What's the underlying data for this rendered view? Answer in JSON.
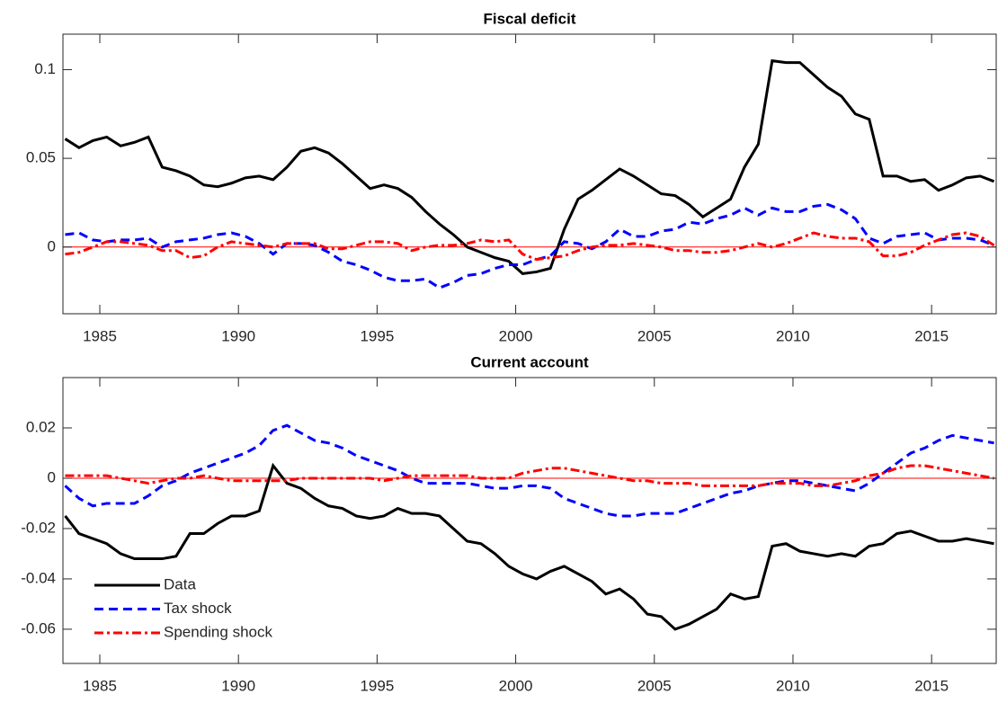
{
  "chart_data": [
    {
      "type": "line",
      "title": "Fiscal deficit",
      "x": [
        1983.75,
        1984.25,
        1984.75,
        1985.25,
        1985.75,
        1986.25,
        1986.75,
        1987.25,
        1987.75,
        1988.25,
        1988.75,
        1989.25,
        1989.75,
        1990.25,
        1990.75,
        1991.25,
        1991.75,
        1992.25,
        1992.75,
        1993.25,
        1993.75,
        1994.25,
        1994.75,
        1995.25,
        1995.75,
        1996.25,
        1996.75,
        1997.25,
        1997.75,
        1998.25,
        1998.75,
        1999.25,
        1999.75,
        2000.25,
        2000.75,
        2001.25,
        2001.75,
        2002.25,
        2002.75,
        2003.25,
        2003.75,
        2004.25,
        2004.75,
        2005.25,
        2005.75,
        2006.25,
        2006.75,
        2007.25,
        2007.75,
        2008.25,
        2008.75,
        2009.25,
        2009.75,
        2010.25,
        2010.75,
        2011.25,
        2011.75,
        2012.25,
        2012.75,
        2013.25,
        2013.75,
        2014.25,
        2014.75,
        2015.25,
        2015.75,
        2016.25,
        2016.75,
        2017.25
      ],
      "xlim": [
        1983.67,
        2017.33
      ],
      "xticks": [
        1985,
        1990,
        1995,
        2000,
        2005,
        2010,
        2015
      ],
      "ylim": [
        -0.0376,
        0.12
      ],
      "yticks": [
        0,
        0.05,
        0.1
      ],
      "reference_line": {
        "value": 0,
        "color": "#ff0000"
      },
      "series": [
        {
          "name": "Data",
          "color": "#000000",
          "style": "solid",
          "values": [
            0.061,
            0.056,
            0.06,
            0.062,
            0.057,
            0.059,
            0.062,
            0.045,
            0.043,
            0.04,
            0.035,
            0.034,
            0.036,
            0.039,
            0.04,
            0.038,
            0.045,
            0.054,
            0.056,
            0.053,
            0.047,
            0.04,
            0.033,
            0.035,
            0.033,
            0.028,
            0.02,
            0.013,
            0.007,
            0.0,
            -0.003,
            -0.006,
            -0.008,
            -0.015,
            -0.014,
            -0.012,
            0.01,
            0.027,
            0.032,
            0.038,
            0.044,
            0.04,
            0.035,
            0.03,
            0.029,
            0.024,
            0.017,
            0.022,
            0.027,
            0.045,
            0.058,
            0.105,
            0.104,
            0.104,
            0.097,
            0.09,
            0.085,
            0.075,
            0.072,
            0.04,
            0.04,
            0.037,
            0.038,
            0.032,
            0.035,
            0.039,
            0.04,
            0.037
          ]
        },
        {
          "name": "Tax shock",
          "color": "#0000ff",
          "style": "dashed",
          "values": [
            0.007,
            0.008,
            0.004,
            0.003,
            0.004,
            0.004,
            0.005,
            0.0,
            0.003,
            0.004,
            0.005,
            0.007,
            0.008,
            0.006,
            0.002,
            -0.004,
            0.002,
            0.002,
            0.001,
            -0.003,
            -0.008,
            -0.01,
            -0.013,
            -0.017,
            -0.019,
            -0.019,
            -0.018,
            -0.023,
            -0.02,
            -0.016,
            -0.015,
            -0.012,
            -0.01,
            -0.01,
            -0.007,
            -0.005,
            0.003,
            0.002,
            -0.001,
            0.003,
            0.01,
            0.006,
            0.006,
            0.009,
            0.01,
            0.014,
            0.013,
            0.016,
            0.018,
            0.022,
            0.018,
            0.022,
            0.02,
            0.02,
            0.023,
            0.024,
            0.021,
            0.016,
            0.005,
            0.002,
            0.006,
            0.007,
            0.008,
            0.004,
            0.005,
            0.005,
            0.004,
            0.001
          ]
        },
        {
          "name": "Spending shock",
          "color": "#ff0000",
          "style": "dashdot",
          "values": [
            -0.004,
            -0.003,
            0.0,
            0.003,
            0.003,
            0.002,
            0.001,
            -0.002,
            -0.002,
            -0.006,
            -0.005,
            0.0,
            0.003,
            0.002,
            0.001,
            0.0,
            0.002,
            0.002,
            0.002,
            -0.001,
            -0.001,
            0.001,
            0.003,
            0.003,
            0.002,
            -0.002,
            0.0,
            0.001,
            0.001,
            0.002,
            0.004,
            0.003,
            0.004,
            -0.004,
            -0.007,
            -0.006,
            -0.005,
            -0.002,
            0.0,
            0.001,
            0.001,
            0.002,
            0.001,
            0.0,
            -0.002,
            -0.002,
            -0.003,
            -0.003,
            -0.002,
            0.0,
            0.002,
            0.0,
            0.002,
            0.005,
            0.008,
            0.006,
            0.005,
            0.005,
            0.003,
            -0.005,
            -0.005,
            -0.003,
            0.001,
            0.004,
            0.007,
            0.008,
            0.006,
            0.001
          ]
        }
      ]
    },
    {
      "type": "line",
      "title": "Current account",
      "x": [
        1983.75,
        1984.25,
        1984.75,
        1985.25,
        1985.75,
        1986.25,
        1986.75,
        1987.25,
        1987.75,
        1988.25,
        1988.75,
        1989.25,
        1989.75,
        1990.25,
        1990.75,
        1991.25,
        1991.75,
        1992.25,
        1992.75,
        1993.25,
        1993.75,
        1994.25,
        1994.75,
        1995.25,
        1995.75,
        1996.25,
        1996.75,
        1997.25,
        1997.75,
        1998.25,
        1998.75,
        1999.25,
        1999.75,
        2000.25,
        2000.75,
        2001.25,
        2001.75,
        2002.25,
        2002.75,
        2003.25,
        2003.75,
        2004.25,
        2004.75,
        2005.25,
        2005.75,
        2006.25,
        2006.75,
        2007.25,
        2007.75,
        2008.25,
        2008.75,
        2009.25,
        2009.75,
        2010.25,
        2010.75,
        2011.25,
        2011.75,
        2012.25,
        2012.75,
        2013.25,
        2013.75,
        2014.25,
        2014.75,
        2015.25,
        2015.75,
        2016.25,
        2016.75,
        2017.25
      ],
      "xlim": [
        1983.67,
        2017.33
      ],
      "xticks": [
        1985,
        1990,
        1995,
        2000,
        2005,
        2010,
        2015
      ],
      "ylim": [
        -0.0736,
        0.04
      ],
      "yticks": [
        -0.06,
        -0.04,
        -0.02,
        0,
        0.02
      ],
      "reference_line": {
        "value": 0,
        "color": "#ff0000"
      },
      "legend": "lower left",
      "series": [
        {
          "name": "Data",
          "color": "#000000",
          "style": "solid",
          "values": [
            -0.015,
            -0.022,
            -0.024,
            -0.026,
            -0.03,
            -0.032,
            -0.032,
            -0.032,
            -0.031,
            -0.022,
            -0.022,
            -0.018,
            -0.015,
            -0.015,
            -0.013,
            0.005,
            -0.002,
            -0.004,
            -0.008,
            -0.011,
            -0.012,
            -0.015,
            -0.016,
            -0.015,
            -0.012,
            -0.014,
            -0.014,
            -0.015,
            -0.02,
            -0.025,
            -0.026,
            -0.03,
            -0.035,
            -0.038,
            -0.04,
            -0.037,
            -0.035,
            -0.038,
            -0.041,
            -0.046,
            -0.044,
            -0.048,
            -0.054,
            -0.055,
            -0.06,
            -0.058,
            -0.055,
            -0.052,
            -0.046,
            -0.048,
            -0.047,
            -0.027,
            -0.026,
            -0.029,
            -0.03,
            -0.031,
            -0.03,
            -0.031,
            -0.027,
            -0.026,
            -0.022,
            -0.021,
            -0.023,
            -0.025,
            -0.025,
            -0.024,
            -0.025,
            -0.026
          ]
        },
        {
          "name": "Tax shock",
          "color": "#0000ff",
          "style": "dashed",
          "values": [
            -0.003,
            -0.008,
            -0.011,
            -0.01,
            -0.01,
            -0.01,
            -0.007,
            -0.003,
            -0.001,
            0.002,
            0.004,
            0.006,
            0.008,
            0.01,
            0.013,
            0.019,
            0.021,
            0.018,
            0.015,
            0.014,
            0.012,
            0.009,
            0.007,
            0.005,
            0.003,
            0.0,
            -0.002,
            -0.002,
            -0.002,
            -0.002,
            -0.003,
            -0.004,
            -0.004,
            -0.003,
            -0.003,
            -0.004,
            -0.008,
            -0.01,
            -0.012,
            -0.014,
            -0.015,
            -0.015,
            -0.014,
            -0.014,
            -0.014,
            -0.012,
            -0.01,
            -0.008,
            -0.006,
            -0.005,
            -0.003,
            -0.002,
            -0.001,
            -0.001,
            -0.002,
            -0.003,
            -0.004,
            -0.005,
            -0.002,
            0.002,
            0.006,
            0.01,
            0.012,
            0.015,
            0.017,
            0.016,
            0.015,
            0.014
          ]
        },
        {
          "name": "Spending shock",
          "color": "#ff0000",
          "style": "dashdot",
          "values": [
            0.001,
            0.001,
            0.001,
            0.001,
            0.0,
            -0.001,
            -0.002,
            -0.001,
            0.0,
            0.0,
            0.001,
            0.0,
            -0.001,
            -0.001,
            -0.001,
            -0.001,
            -0.001,
            0.0,
            0.0,
            0.0,
            0.0,
            0.0,
            0.0,
            -0.001,
            0.0,
            0.001,
            0.001,
            0.001,
            0.001,
            0.001,
            0.0,
            0.0,
            0.0,
            0.002,
            0.003,
            0.004,
            0.004,
            0.003,
            0.002,
            0.001,
            0.0,
            -0.001,
            -0.001,
            -0.002,
            -0.002,
            -0.002,
            -0.003,
            -0.003,
            -0.003,
            -0.003,
            -0.003,
            -0.002,
            -0.002,
            -0.002,
            -0.003,
            -0.003,
            -0.002,
            -0.001,
            0.001,
            0.002,
            0.004,
            0.005,
            0.005,
            0.004,
            0.003,
            0.002,
            0.001,
            0.0
          ]
        }
      ]
    }
  ]
}
